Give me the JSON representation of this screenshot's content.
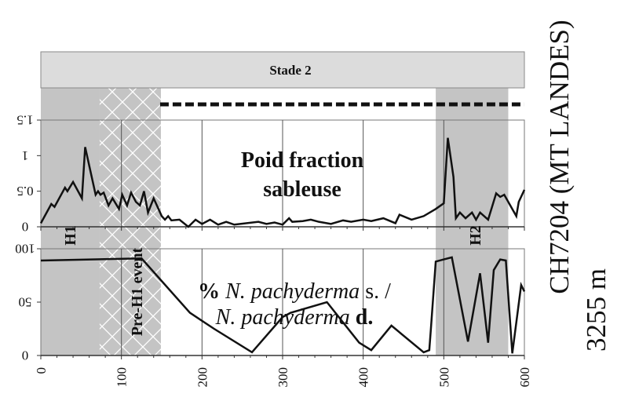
{
  "chart_data": [
    {
      "type": "line",
      "panel": "upper",
      "title": "Poid fraction sableuse",
      "ylim": [
        0,
        1.5
      ],
      "yticks": [
        "0",
        "0.5",
        "1",
        "1.5"
      ],
      "xlim": [
        0,
        600
      ],
      "series": [
        {
          "name": "Poid fraction sableuse",
          "x": [
            0,
            13,
            17,
            30,
            33,
            40,
            51,
            55,
            68,
            71,
            74,
            78,
            84,
            89,
            97,
            101,
            107,
            112,
            118,
            123,
            128,
            133,
            140,
            150,
            154,
            158,
            162,
            172,
            183,
            192,
            200,
            210,
            220,
            230,
            240,
            270,
            280,
            290,
            300,
            308,
            312,
            325,
            335,
            345,
            360,
            375,
            385,
            400,
            410,
            425,
            440,
            445,
            460,
            475,
            490,
            500,
            505,
            512,
            515,
            520,
            527,
            535,
            540,
            545,
            555,
            565,
            570,
            575,
            585,
            590,
            593,
            600
          ],
          "y": [
            0.05,
            0.32,
            0.28,
            0.55,
            0.5,
            0.63,
            0.4,
            1.12,
            0.45,
            0.5,
            0.45,
            0.48,
            0.3,
            0.4,
            0.25,
            0.45,
            0.3,
            0.48,
            0.35,
            0.3,
            0.5,
            0.2,
            0.4,
            0.15,
            0.1,
            0.15,
            0.09,
            0.1,
            0.0,
            0.1,
            0.04,
            0.1,
            0.03,
            0.07,
            0.03,
            0.07,
            0.04,
            0.06,
            0.03,
            0.12,
            0.07,
            0.08,
            0.1,
            0.07,
            0.04,
            0.09,
            0.07,
            0.1,
            0.08,
            0.12,
            0.05,
            0.17,
            0.1,
            0.15,
            0.25,
            0.33,
            1.25,
            0.7,
            0.12,
            0.2,
            0.12,
            0.2,
            0.1,
            0.2,
            0.1,
            0.47,
            0.42,
            0.45,
            0.25,
            0.15,
            0.35,
            0.52
          ]
        }
      ]
    },
    {
      "type": "line",
      "panel": "lower",
      "title_parts": [
        "% ",
        "N. pachyderma",
        " s. /",
        "N. pachyderma",
        " d."
      ],
      "ylim": [
        0,
        100
      ],
      "yticks": [
        "0",
        "50",
        "100"
      ],
      "xlim": [
        0,
        600
      ],
      "xticks": [
        "0",
        "100",
        "200",
        "300",
        "400",
        "500",
        "600"
      ],
      "series": [
        {
          "name": "% N. pachyderma s. / N. pachyderma d.",
          "x": [
            0,
            125,
            185,
            215,
            262,
            300,
            310,
            355,
            395,
            410,
            435,
            475,
            482,
            484,
            490,
            500,
            510,
            530,
            545,
            555,
            562,
            570,
            577,
            585,
            596,
            600
          ],
          "y": [
            89,
            91,
            40,
            25,
            3,
            36,
            40,
            50,
            12,
            5,
            28,
            3,
            5,
            25,
            88,
            90,
            92,
            13,
            77,
            12,
            80,
            90,
            89,
            2,
            66,
            60
          ]
        }
      ]
    }
  ],
  "bands": [
    {
      "label": "H1",
      "from": 0,
      "to": 73,
      "style": "gray"
    },
    {
      "label": "Pre-H1 event",
      "from": 73,
      "to": 149,
      "style": "crosshatch"
    },
    {
      "label": "H2",
      "from": 490,
      "to": 580,
      "style": "gray"
    }
  ],
  "stage_label": "Stade 2",
  "dashed_from": 148,
  "core_title": "CH7204 (MT LANDES)",
  "core_depth": "3255 m",
  "colors": {
    "band": "#c4c4c4",
    "stage": "#dcdcdc",
    "line": "#111111"
  }
}
